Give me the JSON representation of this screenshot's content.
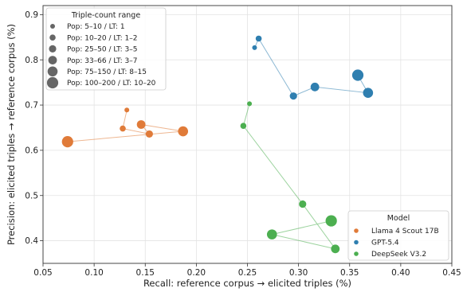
{
  "chart_data": {
    "type": "scatter",
    "xlabel": "Recall: reference corpus → elicited triples (%)",
    "ylabel": "Precision: elicited triples → reference corpus (%)",
    "xlim": [
      0.05,
      0.45
    ],
    "ylim": [
      0.35,
      0.92
    ],
    "xticks": [
      "0.05",
      "0.10",
      "0.15",
      "0.20",
      "0.25",
      "0.30",
      "0.35",
      "0.40",
      "0.45"
    ],
    "yticks": [
      "0.4",
      "0.5",
      "0.6",
      "0.7",
      "0.8",
      "0.9"
    ],
    "grid": true,
    "size_legend": {
      "title": "Triple-count range",
      "placement": "top-left",
      "entries": [
        "Pop: 5–10 / LT: 1",
        "Pop: 10–20 / LT: 1–2",
        "Pop: 25–50 / LT: 3–5",
        "Pop: 33–66 / LT: 3–7",
        "Pop: 75–150 / LT: 8–15",
        "Pop: 100–200 / LT: 10–20"
      ]
    },
    "model_legend": {
      "title": "Model",
      "placement": "bottom-right"
    },
    "series": [
      {
        "name": "Llama 4 Scout 17B",
        "color": "#e07b39",
        "points": [
          {
            "x": 0.132,
            "y": 0.689,
            "bin": 0
          },
          {
            "x": 0.128,
            "y": 0.648,
            "bin": 1
          },
          {
            "x": 0.154,
            "y": 0.636,
            "bin": 2
          },
          {
            "x": 0.146,
            "y": 0.657,
            "bin": 3
          },
          {
            "x": 0.187,
            "y": 0.642,
            "bin": 4
          },
          {
            "x": 0.074,
            "y": 0.619,
            "bin": 5
          }
        ]
      },
      {
        "name": "GPT-5.4",
        "color": "#2f7fb0",
        "points": [
          {
            "x": 0.257,
            "y": 0.827,
            "bin": 0
          },
          {
            "x": 0.261,
            "y": 0.847,
            "bin": 1
          },
          {
            "x": 0.295,
            "y": 0.72,
            "bin": 2
          },
          {
            "x": 0.316,
            "y": 0.74,
            "bin": 3
          },
          {
            "x": 0.368,
            "y": 0.727,
            "bin": 4
          },
          {
            "x": 0.358,
            "y": 0.766,
            "bin": 5
          }
        ]
      },
      {
        "name": "DeepSeek V3.2",
        "color": "#4caf50",
        "points": [
          {
            "x": 0.252,
            "y": 0.703,
            "bin": 0
          },
          {
            "x": 0.246,
            "y": 0.654,
            "bin": 1
          },
          {
            "x": 0.304,
            "y": 0.481,
            "bin": 2
          },
          {
            "x": 0.336,
            "y": 0.382,
            "bin": 3
          },
          {
            "x": 0.274,
            "y": 0.414,
            "bin": 4
          },
          {
            "x": 0.332,
            "y": 0.444,
            "bin": 5
          }
        ]
      }
    ]
  }
}
